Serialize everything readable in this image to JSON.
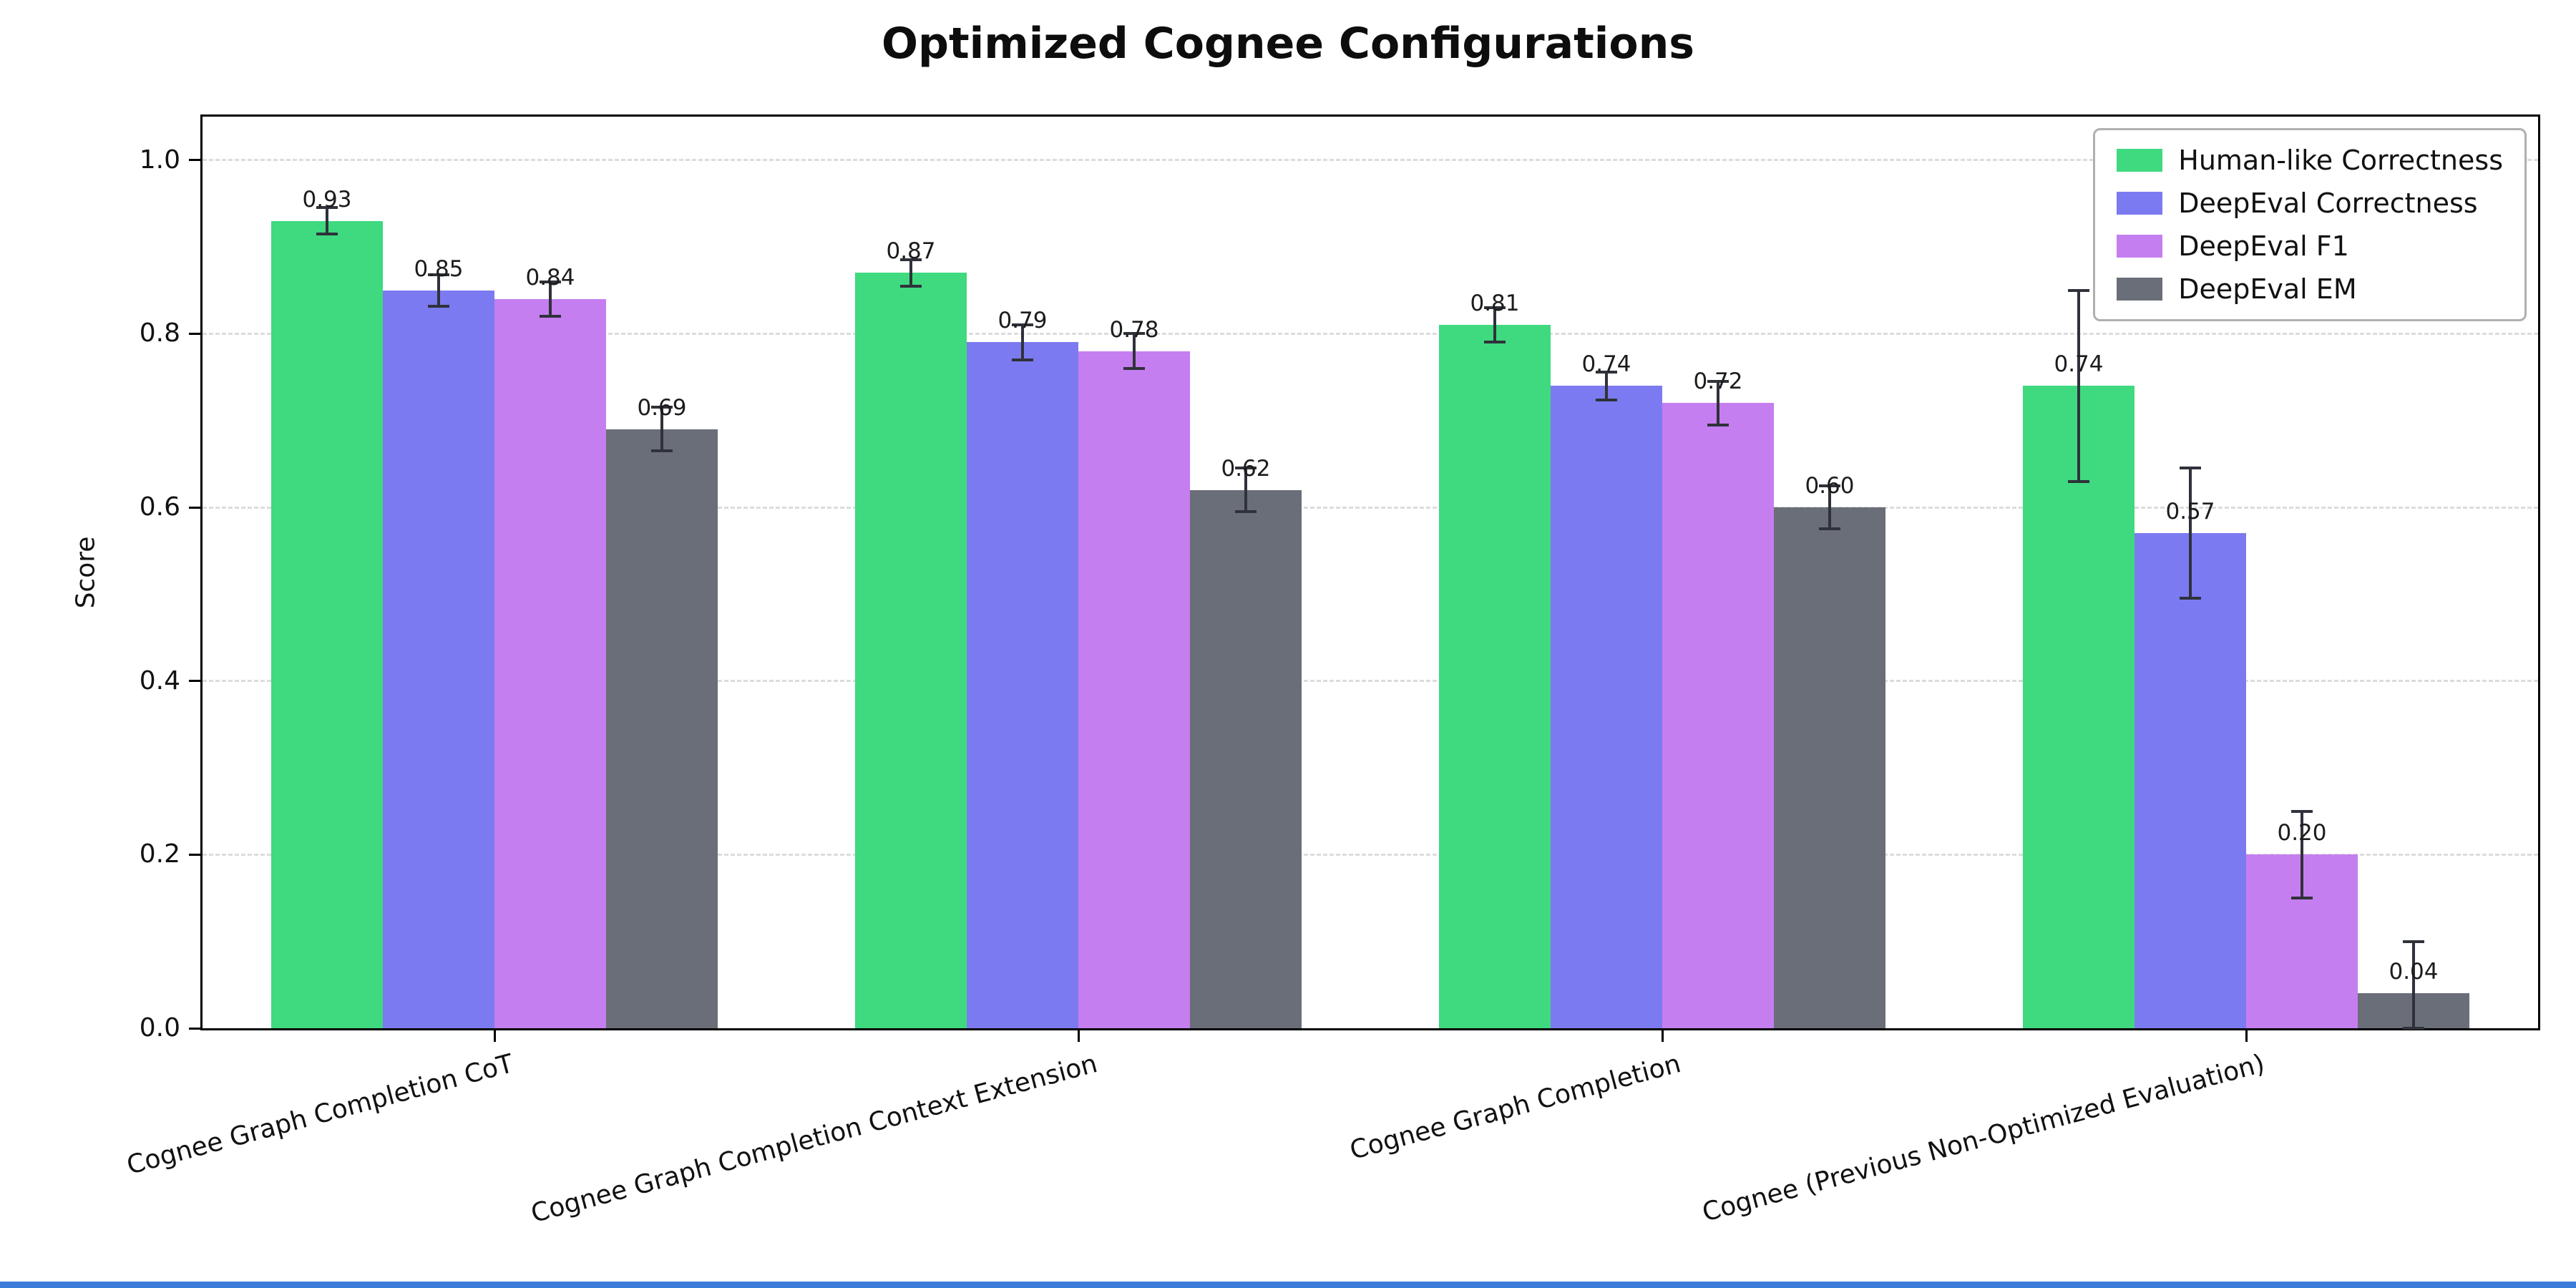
{
  "page": {
    "background": "#ffffff",
    "bottom_edge_color": "#3c7dd9"
  },
  "chart_data": {
    "type": "bar",
    "title": "Optimized Cognee Configurations",
    "ylabel": "Score",
    "xlabel": "",
    "ylim": [
      0,
      1.05
    ],
    "yticks": [
      0.0,
      0.2,
      0.4,
      0.6,
      0.8,
      1.0
    ],
    "grid": "horizontal-dashed",
    "legend_position": "upper-right",
    "error_bar_color": "#2f323a",
    "categories": [
      "Cognee Graph Completion CoT",
      "Cognee Graph Completion Context Extension",
      "Cognee Graph Completion",
      "Cognee (Previous Non-Optimized Evaluation)"
    ],
    "series": [
      {
        "name": "Human-like Correctness",
        "color": "#3fd97f",
        "values": [
          0.93,
          0.87,
          0.81,
          0.74
        ],
        "errors": [
          0.015,
          0.015,
          0.02,
          0.11
        ]
      },
      {
        "name": "DeepEval Correctness",
        "color": "#7c7af0",
        "values": [
          0.85,
          0.79,
          0.74,
          0.57
        ],
        "errors": [
          0.018,
          0.02,
          0.016,
          0.075
        ]
      },
      {
        "name": "DeepEval F1",
        "color": "#c57ef0",
        "values": [
          0.84,
          0.78,
          0.72,
          0.2
        ],
        "errors": [
          0.02,
          0.02,
          0.025,
          0.05
        ]
      },
      {
        "name": "DeepEval EM",
        "color": "#6a6e78",
        "values": [
          0.69,
          0.62,
          0.6,
          0.04
        ],
        "errors": [
          0.025,
          0.025,
          0.025,
          0.06
        ]
      }
    ]
  }
}
